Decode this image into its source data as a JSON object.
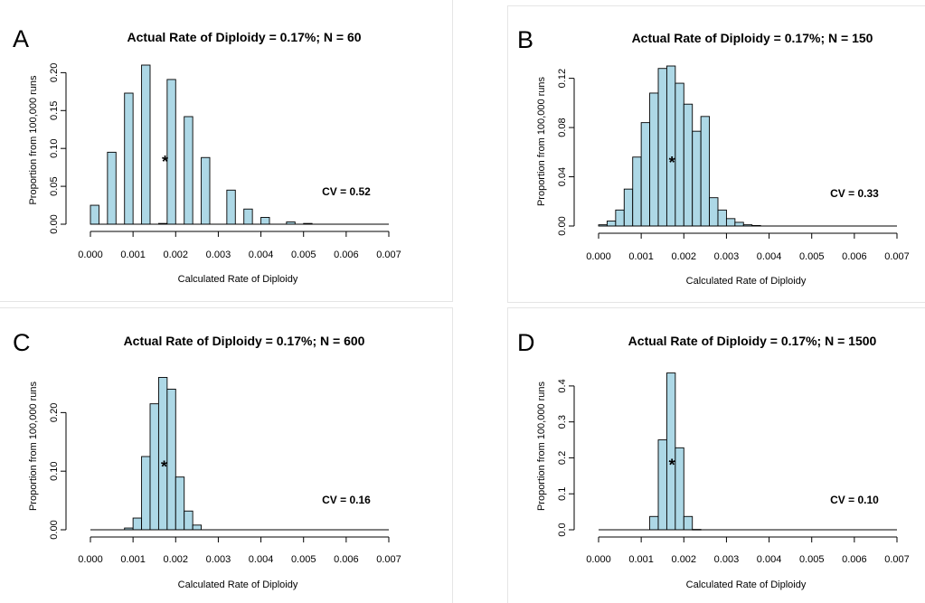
{
  "colors": {
    "bar_fill": "#add8e6",
    "bar_stroke": "#000000",
    "background": "#ffffff"
  },
  "chart_data": [
    {
      "type": "bar",
      "panel": "A",
      "title": "Actual Rate of Diploidy = 0.17%; N = 60",
      "xlabel": "Calculated Rate of Diploidy",
      "ylabel": "Proportion from 100,000 runs",
      "annotation": "CV = 0.52",
      "marker": "*",
      "marker_position": [
        0.00175,
        0.085
      ],
      "xlim": [
        0,
        0.007
      ],
      "ylim": [
        0,
        0.21
      ],
      "x_ticks": [
        "0.000",
        "0.001",
        "0.002",
        "0.003",
        "0.004",
        "0.005",
        "0.006",
        "0.007"
      ],
      "y_ticks": [
        "0.00",
        "0.05",
        "0.10",
        "0.15",
        "0.20"
      ],
      "bin_width": 0.0002,
      "bin_start": 0,
      "values": [
        0.025,
        0,
        0.095,
        0,
        0.173,
        0,
        0.21,
        0,
        0.001,
        0.191,
        0,
        0.142,
        0,
        0.088,
        0,
        0,
        0.045,
        0,
        0.02,
        0,
        0.009,
        0,
        0,
        0.003,
        0,
        0.001,
        0,
        0,
        0,
        0,
        0,
        0,
        0,
        0,
        0
      ]
    },
    {
      "type": "bar",
      "panel": "B",
      "title": "Actual Rate of Diploidy = 0.17%; N = 150",
      "xlabel": "Calculated Rate of Diploidy",
      "ylabel": "Proportion from 100,000 runs",
      "annotation": "CV = 0.33",
      "marker": "*",
      "marker_position": [
        0.00172,
        0.053
      ],
      "xlim": [
        0,
        0.007
      ],
      "ylim": [
        0,
        0.13
      ],
      "x_ticks": [
        "0.000",
        "0.001",
        "0.002",
        "0.003",
        "0.004",
        "0.005",
        "0.006",
        "0.007"
      ],
      "y_ticks": [
        "0.00",
        "0.04",
        "0.08",
        "0.12"
      ],
      "bin_width": 0.0002,
      "bin_start": 0,
      "values": [
        0.001,
        0.004,
        0.013,
        0.03,
        0.056,
        0.084,
        0.108,
        0.128,
        0.13,
        0.116,
        0.099,
        0.077,
        0.089,
        0.023,
        0.013,
        0.006,
        0.003,
        0.001,
        0.0004,
        0,
        0,
        0,
        0,
        0,
        0,
        0,
        0,
        0,
        0,
        0,
        0,
        0,
        0,
        0,
        0
      ]
    },
    {
      "type": "bar",
      "panel": "C",
      "title": "Actual Rate of Diploidy = 0.17%; N = 600",
      "xlabel": "Calculated Rate of Diploidy",
      "ylabel": "Proportion from 100,000 runs",
      "annotation": "CV = 0.16",
      "marker": "*",
      "marker_position": [
        0.00173,
        0.11
      ],
      "xlim": [
        0,
        0.007
      ],
      "ylim": [
        0,
        0.27
      ],
      "x_ticks": [
        "0.000",
        "0.001",
        "0.002",
        "0.003",
        "0.004",
        "0.005",
        "0.006",
        "0.007"
      ],
      "y_ticks": [
        "0.00",
        "0.10",
        "0.20"
      ],
      "bin_width": 0.0002,
      "bin_start": 0,
      "values": [
        0,
        0,
        0,
        0,
        0.003,
        0.02,
        0.125,
        0.215,
        0.26,
        0.24,
        0.09,
        0.032,
        0.008,
        0,
        0,
        0,
        0,
        0,
        0,
        0,
        0,
        0,
        0,
        0,
        0,
        0,
        0,
        0,
        0,
        0,
        0,
        0,
        0,
        0,
        0
      ]
    },
    {
      "type": "bar",
      "panel": "D",
      "title": "Actual Rate of Diploidy = 0.17%; N = 1500",
      "xlabel": "Calculated Rate of Diploidy",
      "ylabel": "Proportion from 100,000 runs",
      "annotation": "CV = 0.10",
      "marker": "*",
      "marker_position": [
        0.00172,
        0.185
      ],
      "xlim": [
        0,
        0.007
      ],
      "ylim": [
        0,
        0.44
      ],
      "x_ticks": [
        "0.000",
        "0.001",
        "0.002",
        "0.003",
        "0.004",
        "0.005",
        "0.006",
        "0.007"
      ],
      "y_ticks": [
        "0.0",
        "0.1",
        "0.2",
        "0.3",
        "0.4"
      ],
      "bin_width": 0.0002,
      "bin_start": 0,
      "values": [
        0,
        0,
        0,
        0,
        0,
        0,
        0.037,
        0.25,
        0.436,
        0.228,
        0.037,
        0.001,
        0,
        0,
        0,
        0,
        0,
        0,
        0,
        0,
        0,
        0,
        0,
        0,
        0,
        0,
        0,
        0,
        0,
        0,
        0,
        0,
        0,
        0,
        0
      ]
    }
  ]
}
